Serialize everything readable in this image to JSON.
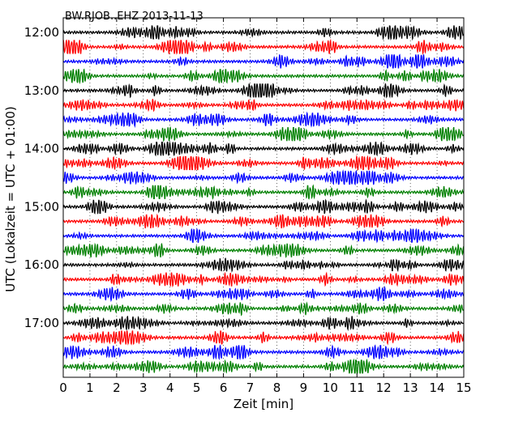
{
  "chart_data": {
    "type": "line",
    "title": "BW.RJOB..EHZ 2013-11-13",
    "xlabel": "Zeit  [min]",
    "ylabel": "UTC (Lokalzeit = UTC + 01:00)",
    "xlim": [
      0,
      15
    ],
    "x_ticks": [
      "0",
      "1",
      "2",
      "3",
      "4",
      "5",
      "6",
      "7",
      "8",
      "9",
      "10",
      "11",
      "12",
      "13",
      "14",
      "15"
    ],
    "y_ticks": [
      "12:00",
      "13:00",
      "14:00",
      "15:00",
      "16:00",
      "17:00"
    ],
    "grid": "vertical dotted at each minute",
    "trace_colors": [
      "#000000",
      "#ff0000",
      "#0000ff",
      "#008000"
    ],
    "trace_start_times": [
      "12:00",
      "12:15",
      "12:30",
      "12:45",
      "13:00",
      "13:15",
      "13:30",
      "13:45",
      "14:00",
      "14:15",
      "14:30",
      "14:45",
      "15:00",
      "15:15",
      "15:30",
      "15:45",
      "16:00",
      "16:15",
      "16:30",
      "16:45",
      "17:00",
      "17:15",
      "17:30",
      "17:45"
    ],
    "trace_minutes_per_line": 15
  }
}
